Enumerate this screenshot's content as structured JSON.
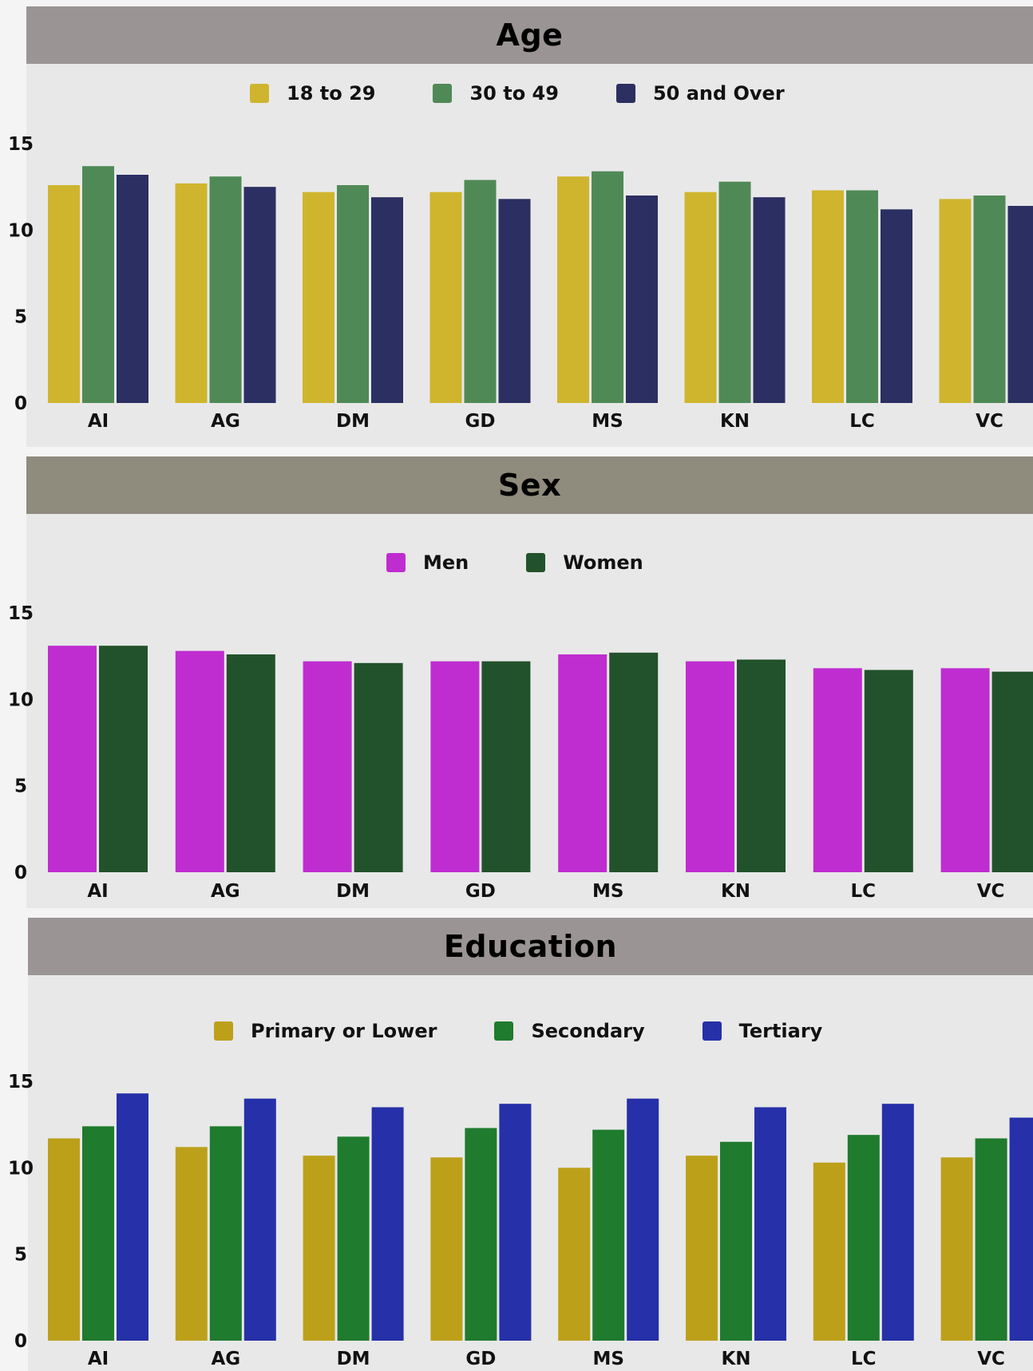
{
  "colors": {
    "age_header": "#9a9594",
    "sex_header": "#8f8b7d",
    "education_header": "#9a9594",
    "panel_bg": "#e8e8e8"
  },
  "chart_data": [
    {
      "type": "bar",
      "title": "Age",
      "categories": [
        "AI",
        "AG",
        "DM",
        "GD",
        "MS",
        "KN",
        "LC",
        "VC"
      ],
      "ylim": [
        0,
        15
      ],
      "yticks": [
        "0",
        "5",
        "10",
        "15"
      ],
      "grid": false,
      "legend_placement": "top-center",
      "series": [
        {
          "name": "18 to 29",
          "color": "#cfb52e",
          "values": [
            12.6,
            12.7,
            12.2,
            12.2,
            13.1,
            12.2,
            12.3,
            11.8
          ]
        },
        {
          "name": "30 to 49",
          "color": "#4f8a56",
          "values": [
            13.7,
            13.1,
            12.6,
            12.9,
            13.4,
            12.8,
            12.3,
            12.0
          ]
        },
        {
          "name": "50 and Over",
          "color": "#2b2f62",
          "values": [
            13.2,
            12.5,
            11.9,
            11.8,
            12.0,
            11.9,
            11.2,
            11.4
          ]
        }
      ]
    },
    {
      "type": "bar",
      "title": "Sex",
      "categories": [
        "AI",
        "AG",
        "DM",
        "GD",
        "MS",
        "KN",
        "LC",
        "VC"
      ],
      "ylim": [
        0,
        15
      ],
      "yticks": [
        "0",
        "5",
        "10",
        "15"
      ],
      "grid": false,
      "legend_placement": "top-center",
      "series": [
        {
          "name": "Men",
          "color": "#bf2dd0",
          "values": [
            13.1,
            12.8,
            12.2,
            12.2,
            12.6,
            12.2,
            11.8,
            11.8
          ]
        },
        {
          "name": "Women",
          "color": "#22522b",
          "values": [
            13.1,
            12.6,
            12.1,
            12.2,
            12.7,
            12.3,
            11.7,
            11.6
          ]
        }
      ]
    },
    {
      "type": "bar",
      "title": "Education",
      "categories": [
        "AI",
        "AG",
        "DM",
        "GD",
        "MS",
        "KN",
        "LC",
        "VC"
      ],
      "ylim": [
        0,
        15
      ],
      "yticks": [
        "0",
        "5",
        "10",
        "15"
      ],
      "grid": false,
      "legend_placement": "top-center",
      "series": [
        {
          "name": "Primary or Lower",
          "color": "#bda01a",
          "values": [
            11.7,
            11.2,
            10.7,
            10.6,
            10.0,
            10.7,
            10.3,
            10.6
          ]
        },
        {
          "name": "Secondary",
          "color": "#1f7b2e",
          "values": [
            12.4,
            12.4,
            11.8,
            12.3,
            12.2,
            11.5,
            11.9,
            11.7
          ]
        },
        {
          "name": "Tertiary",
          "color": "#2630a8",
          "values": [
            14.3,
            14.0,
            13.5,
            13.7,
            14.0,
            13.5,
            13.7,
            12.9
          ]
        }
      ]
    }
  ]
}
